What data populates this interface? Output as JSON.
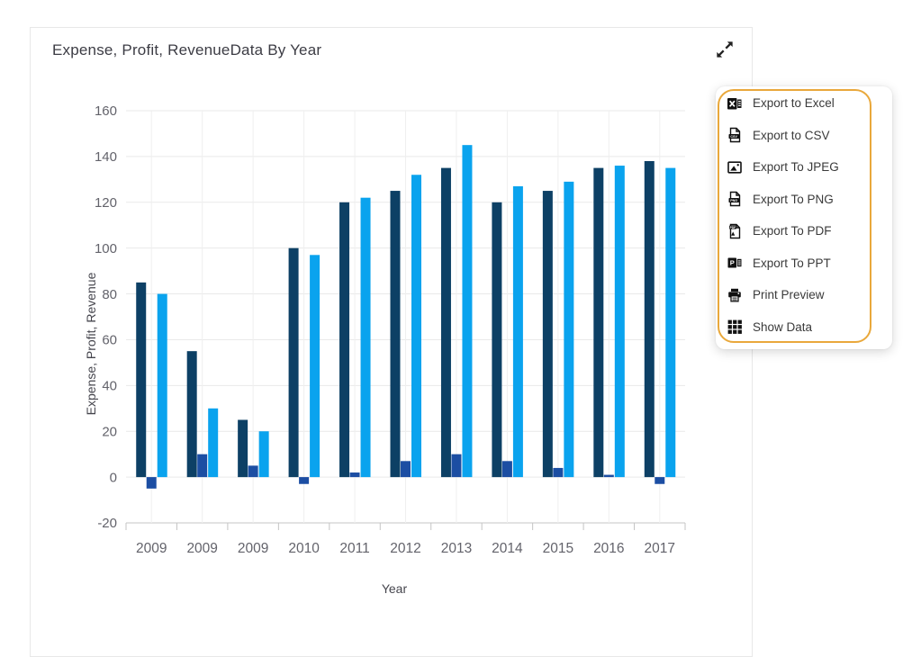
{
  "card": {
    "title": "Expense, Profit, RevenueData By Year",
    "expand_icon": "expand-arrows-icon"
  },
  "export_menu": {
    "border_color": "#e9a83b",
    "items": [
      {
        "id": "export-excel",
        "icon": "excel-icon",
        "label": "Export to Excel"
      },
      {
        "id": "export-csv",
        "icon": "csv-icon",
        "label": "Export to CSV"
      },
      {
        "id": "export-jpeg",
        "icon": "jpeg-icon",
        "label": "Export To JPEG"
      },
      {
        "id": "export-png",
        "icon": "png-icon",
        "label": "Export To PNG"
      },
      {
        "id": "export-pdf",
        "icon": "pdf-icon",
        "label": "Export To PDF"
      },
      {
        "id": "export-ppt",
        "icon": "ppt-icon",
        "label": "Export To PPT"
      },
      {
        "id": "print-preview",
        "icon": "print-icon",
        "label": "Print Preview"
      },
      {
        "id": "show-data",
        "icon": "show-data-icon",
        "label": "Show Data"
      }
    ]
  },
  "chart_data": {
    "type": "bar",
    "title": "Expense, Profit, RevenueData By Year",
    "xlabel": "Year",
    "ylabel": "Expense, Profit, Revenue",
    "categories": [
      "2009",
      "2009",
      "2009",
      "2010",
      "2011",
      "2012",
      "2013",
      "2014",
      "2015",
      "2016",
      "2017"
    ],
    "series": [
      {
        "name": "Expense",
        "color": "#0d4065",
        "values": [
          85,
          55,
          25,
          100,
          120,
          125,
          135,
          120,
          125,
          135,
          138
        ]
      },
      {
        "name": "Profit",
        "color": "#1c4ea3",
        "values": [
          -5,
          10,
          5,
          -3,
          2,
          7,
          10,
          7,
          4,
          1,
          -3
        ]
      },
      {
        "name": "Revenue",
        "color": "#0aa3ee",
        "values": [
          80,
          30,
          20,
          97,
          122,
          132,
          145,
          127,
          129,
          136,
          135
        ]
      }
    ],
    "ylim": [
      -20,
      160
    ],
    "ytick_step": 20,
    "grid": true,
    "legend": "none"
  },
  "colors": {
    "grid_h": "#e9e9e9",
    "grid_v": "#efefef",
    "axis_line": "#c4c4c4",
    "tick_text": "#63636b",
    "title_text": "#3c3c44"
  }
}
